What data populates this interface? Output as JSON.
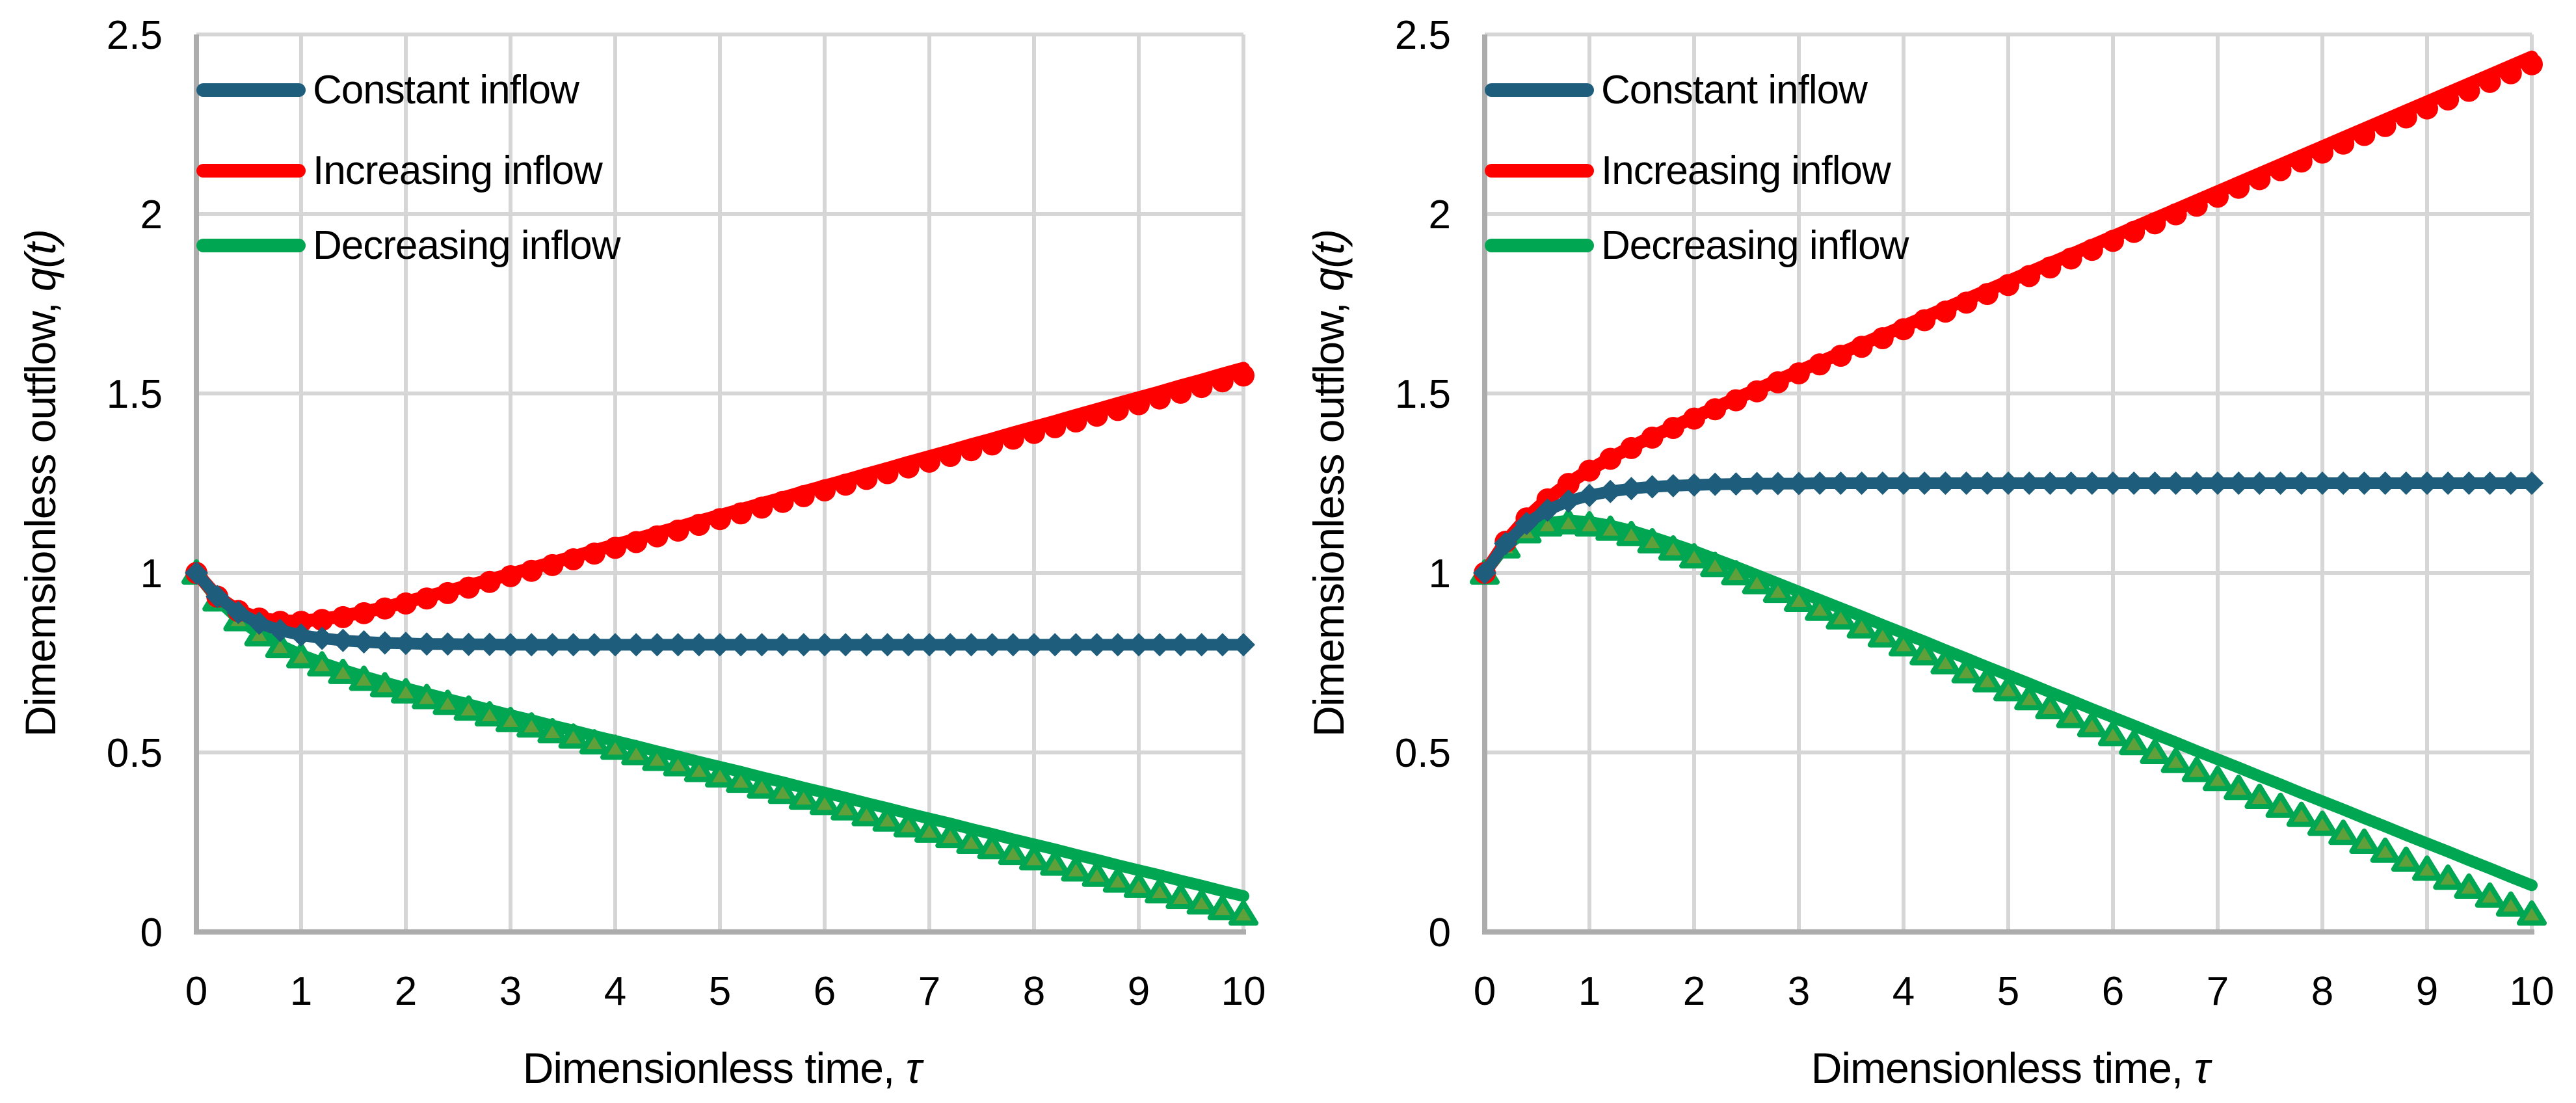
{
  "colors": {
    "constant_inflow": "#1E5E7C",
    "increasing_inflow": "#FF0000",
    "decreasing_inflow": "#00A651",
    "decreasing_marker_fill": "#5FA03A",
    "gridline": "#D6D6D6",
    "axis_line": "#ACACAC",
    "text": "#000000"
  },
  "chart_data": [
    {
      "type": "line",
      "title": "",
      "xlabel_text": "Dimensionless time, ",
      "xlabel_math": "τ",
      "ylabel_text": "Dimemsionless outflow, ",
      "ylabel_math": "q(t)",
      "xlim": [
        0,
        10
      ],
      "ylim": [
        0,
        2.5
      ],
      "grid": true,
      "legend_position": "top-left-inside",
      "x_ticks": [
        {
          "v": 0,
          "label": "0"
        },
        {
          "v": 1,
          "label": "1"
        },
        {
          "v": 2,
          "label": "2"
        },
        {
          "v": 3,
          "label": "3"
        },
        {
          "v": 4,
          "label": "4"
        },
        {
          "v": 5,
          "label": "5"
        },
        {
          "v": 6,
          "label": "6"
        },
        {
          "v": 7,
          "label": "7"
        },
        {
          "v": 8,
          "label": "8"
        },
        {
          "v": 9,
          "label": "9"
        },
        {
          "v": 10,
          "label": "10"
        }
      ],
      "y_ticks": [
        {
          "v": 0,
          "label": "0"
        },
        {
          "v": 0.5,
          "label": "0.5"
        },
        {
          "v": 1,
          "label": "1"
        },
        {
          "v": 1.5,
          "label": "1.5"
        },
        {
          "v": 2,
          "label": "2"
        },
        {
          "v": 2.5,
          "label": "2.5"
        }
      ],
      "x_start": 0,
      "x_step": 0.2,
      "series": [
        {
          "name": "Constant inflow",
          "color": "#1E5E7C",
          "marker": "diamond",
          "marker_fill": "#1E5E7C",
          "line_width": 18,
          "line": [
            1.0,
            0.934,
            0.89,
            0.86,
            0.84,
            0.827,
            0.818,
            0.812,
            0.808,
            0.805,
            0.804,
            0.802,
            0.802,
            0.801,
            0.801,
            0.8,
            0.8,
            0.8,
            0.8,
            0.8,
            0.8,
            0.8,
            0.8,
            0.8,
            0.8,
            0.8,
            0.8,
            0.8,
            0.8,
            0.8,
            0.8,
            0.8,
            0.8,
            0.8,
            0.8,
            0.8,
            0.8,
            0.8,
            0.8,
            0.8,
            0.8,
            0.8,
            0.8,
            0.8,
            0.8,
            0.8,
            0.8,
            0.8,
            0.8,
            0.8,
            0.8
          ]
        },
        {
          "name": "Increasing inflow",
          "color": "#FF0000",
          "marker": "circle",
          "marker_fill": "#FF0000",
          "line_width": 20,
          "line": [
            1.0,
            0.934,
            0.895,
            0.874,
            0.866,
            0.866,
            0.871,
            0.88,
            0.891,
            0.904,
            0.919,
            0.934,
            0.949,
            0.965,
            0.98,
            0.997,
            1.013,
            1.029,
            1.045,
            1.062,
            1.078,
            1.094,
            1.111,
            1.127,
            1.144,
            1.16,
            1.176,
            1.193,
            1.209,
            1.226,
            1.242,
            1.258,
            1.275,
            1.291,
            1.308,
            1.324,
            1.34,
            1.357,
            1.373,
            1.39,
            1.406,
            1.422,
            1.439,
            1.455,
            1.472,
            1.488,
            1.504,
            1.521,
            1.537,
            1.554,
            1.57
          ],
          "markers": [
            1.0,
            0.934,
            0.894,
            0.873,
            0.864,
            0.864,
            0.869,
            0.877,
            0.888,
            0.901,
            0.915,
            0.929,
            0.944,
            0.959,
            0.975,
            0.991,
            1.006,
            1.022,
            1.038,
            1.054,
            1.07,
            1.086,
            1.102,
            1.118,
            1.134,
            1.15,
            1.166,
            1.182,
            1.198,
            1.214,
            1.23,
            1.246,
            1.262,
            1.278,
            1.294,
            1.31,
            1.326,
            1.342,
            1.358,
            1.374,
            1.39,
            1.406,
            1.422,
            1.438,
            1.454,
            1.47,
            1.486,
            1.502,
            1.518,
            1.534,
            1.55
          ]
        },
        {
          "name": "Decreasing inflow",
          "color": "#00A651",
          "marker": "triangle",
          "marker_fill": "#5FA03A",
          "line_width": 18,
          "line": [
            1.0,
            0.926,
            0.872,
            0.831,
            0.799,
            0.772,
            0.75,
            0.73,
            0.712,
            0.695,
            0.679,
            0.664,
            0.649,
            0.634,
            0.619,
            0.604,
            0.59,
            0.575,
            0.561,
            0.546,
            0.532,
            0.518,
            0.503,
            0.489,
            0.474,
            0.46,
            0.446,
            0.431,
            0.417,
            0.402,
            0.388,
            0.374,
            0.359,
            0.345,
            0.33,
            0.316,
            0.302,
            0.287,
            0.273,
            0.258,
            0.244,
            0.23,
            0.215,
            0.201,
            0.186,
            0.172,
            0.158,
            0.143,
            0.129,
            0.114,
            0.1
          ],
          "markers": [
            1.0,
            0.925,
            0.87,
            0.828,
            0.795,
            0.767,
            0.744,
            0.723,
            0.704,
            0.686,
            0.669,
            0.653,
            0.637,
            0.621,
            0.605,
            0.589,
            0.574,
            0.558,
            0.543,
            0.527,
            0.512,
            0.497,
            0.481,
            0.466,
            0.45,
            0.435,
            0.42,
            0.404,
            0.389,
            0.373,
            0.358,
            0.343,
            0.327,
            0.312,
            0.296,
            0.281,
            0.266,
            0.25,
            0.235,
            0.219,
            0.204,
            0.189,
            0.173,
            0.158,
            0.142,
            0.127,
            0.112,
            0.096,
            0.081,
            0.065,
            0.05
          ]
        }
      ]
    },
    {
      "type": "line",
      "title": "",
      "xlabel_text": "Dimensionless time, ",
      "xlabel_math": "τ",
      "ylabel_text": "Dimemsionless outflow, ",
      "ylabel_math": "q(t)",
      "xlim": [
        0,
        10
      ],
      "ylim": [
        0,
        2.5
      ],
      "grid": true,
      "legend_position": "top-left-inside",
      "x_ticks": [
        {
          "v": 0,
          "label": "0"
        },
        {
          "v": 1,
          "label": "1"
        },
        {
          "v": 2,
          "label": "2"
        },
        {
          "v": 3,
          "label": "3"
        },
        {
          "v": 4,
          "label": "4"
        },
        {
          "v": 5,
          "label": "5"
        },
        {
          "v": 6,
          "label": "6"
        },
        {
          "v": 7,
          "label": "7"
        },
        {
          "v": 8,
          "label": "8"
        },
        {
          "v": 9,
          "label": "9"
        },
        {
          "v": 10,
          "label": "10"
        }
      ],
      "y_ticks": [
        {
          "v": 0,
          "label": "0"
        },
        {
          "v": 0.5,
          "label": "0.5"
        },
        {
          "v": 1,
          "label": "1"
        },
        {
          "v": 1.5,
          "label": "1.5"
        },
        {
          "v": 2,
          "label": "2"
        },
        {
          "v": 2.5,
          "label": "2.5"
        }
      ],
      "x_start": 0,
      "x_step": 0.2,
      "series": [
        {
          "name": "Constant inflow",
          "color": "#1E5E7C",
          "marker": "diamond",
          "marker_fill": "#1E5E7C",
          "line_width": 18,
          "line": [
            1.0,
            1.082,
            1.138,
            1.175,
            1.2,
            1.216,
            1.227,
            1.235,
            1.24,
            1.243,
            1.245,
            1.247,
            1.248,
            1.249,
            1.249,
            1.249,
            1.25,
            1.25,
            1.25,
            1.25,
            1.25,
            1.25,
            1.25,
            1.25,
            1.25,
            1.25,
            1.25,
            1.25,
            1.25,
            1.25,
            1.25,
            1.25,
            1.25,
            1.25,
            1.25,
            1.25,
            1.25,
            1.25,
            1.25,
            1.25,
            1.25,
            1.25,
            1.25,
            1.25,
            1.25,
            1.25,
            1.25,
            1.25,
            1.25,
            1.25,
            1.25
          ]
        },
        {
          "name": "Increasing inflow",
          "color": "#FF0000",
          "marker": "circle",
          "marker_fill": "#FF0000",
          "line_width": 20,
          "line": [
            1.0,
            1.087,
            1.153,
            1.206,
            1.25,
            1.287,
            1.32,
            1.351,
            1.38,
            1.407,
            1.434,
            1.46,
            1.486,
            1.511,
            1.537,
            1.562,
            1.587,
            1.612,
            1.637,
            1.662,
            1.687,
            1.712,
            1.737,
            1.762,
            1.787,
            1.812,
            1.837,
            1.862,
            1.887,
            1.912,
            1.937,
            1.962,
            1.987,
            2.012,
            2.037,
            2.062,
            2.087,
            2.112,
            2.137,
            2.162,
            2.187,
            2.212,
            2.237,
            2.262,
            2.287,
            2.312,
            2.337,
            2.362,
            2.387,
            2.412,
            2.437
          ],
          "markers": [
            1.0,
            1.087,
            1.152,
            1.205,
            1.248,
            1.285,
            1.318,
            1.348,
            1.377,
            1.404,
            1.43,
            1.456,
            1.481,
            1.506,
            1.531,
            1.556,
            1.581,
            1.605,
            1.63,
            1.654,
            1.679,
            1.704,
            1.728,
            1.753,
            1.777,
            1.802,
            1.827,
            1.851,
            1.876,
            1.9,
            1.925,
            1.95,
            1.974,
            1.999,
            2.023,
            2.048,
            2.073,
            2.097,
            2.122,
            2.146,
            2.171,
            2.196,
            2.22,
            2.245,
            2.269,
            2.294,
            2.319,
            2.343,
            2.368,
            2.392,
            2.417
          ]
        },
        {
          "name": "Decreasing inflow",
          "color": "#00A651",
          "marker": "triangle",
          "marker_fill": "#5FA03A",
          "line_width": 18,
          "line": [
            1.0,
            1.075,
            1.118,
            1.139,
            1.146,
            1.142,
            1.132,
            1.118,
            1.1,
            1.081,
            1.061,
            1.039,
            1.017,
            0.994,
            0.971,
            0.948,
            0.925,
            0.902,
            0.879,
            0.855,
            0.832,
            0.809,
            0.785,
            0.762,
            0.738,
            0.715,
            0.692,
            0.668,
            0.645,
            0.621,
            0.598,
            0.575,
            0.551,
            0.528,
            0.504,
            0.481,
            0.458,
            0.434,
            0.411,
            0.387,
            0.364,
            0.341,
            0.317,
            0.294,
            0.27,
            0.247,
            0.224,
            0.2,
            0.177,
            0.153,
            0.13
          ],
          "markers": [
            1.0,
            1.073,
            1.115,
            1.134,
            1.14,
            1.134,
            1.122,
            1.107,
            1.087,
            1.067,
            1.045,
            1.021,
            0.998,
            0.973,
            0.949,
            0.924,
            0.899,
            0.875,
            0.85,
            0.825,
            0.8,
            0.775,
            0.75,
            0.725,
            0.7,
            0.675,
            0.65,
            0.625,
            0.6,
            0.575,
            0.55,
            0.525,
            0.5,
            0.475,
            0.45,
            0.425,
            0.4,
            0.375,
            0.35,
            0.325,
            0.3,
            0.275,
            0.25,
            0.225,
            0.2,
            0.175,
            0.15,
            0.125,
            0.1,
            0.075,
            0.05
          ]
        }
      ]
    }
  ]
}
